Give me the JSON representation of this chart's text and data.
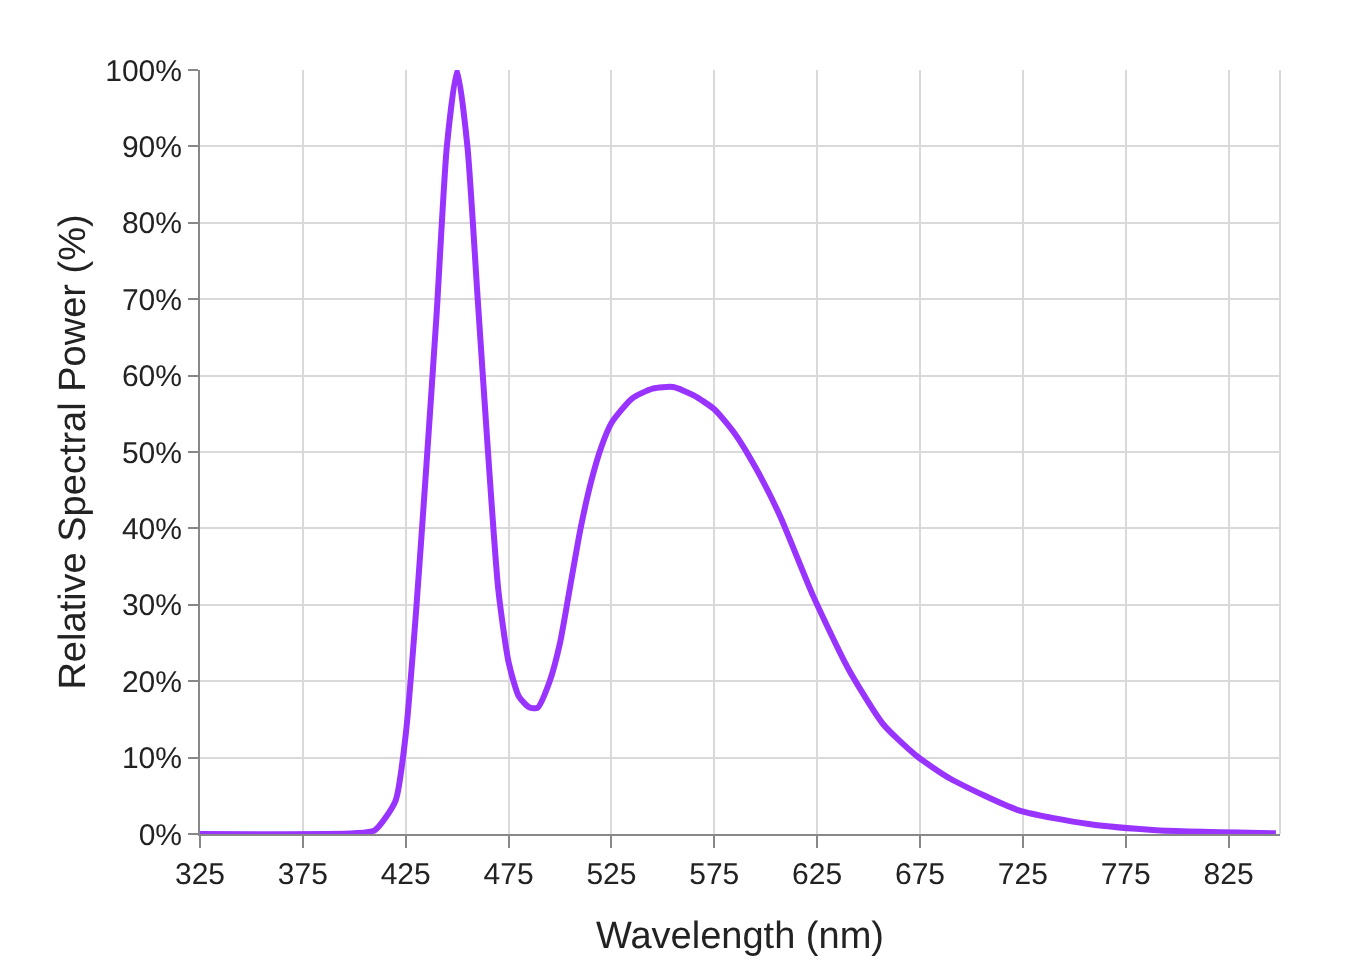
{
  "chart_data": {
    "type": "line",
    "xlabel": "Wavelength (nm)",
    "ylabel": "Relative Spectral Power (%)",
    "x": [
      325,
      400,
      410,
      420,
      425,
      430,
      435,
      440,
      445,
      450,
      455,
      460,
      465,
      470,
      475,
      480,
      485,
      489,
      495,
      500,
      505,
      510,
      515,
      520,
      525,
      535,
      545,
      555,
      565,
      575,
      585,
      595,
      607,
      623,
      640,
      657,
      673,
      690,
      723,
      757,
      790,
      848
    ],
    "series": [
      {
        "color": "#9933ff",
        "values": [
          0,
          0.1,
          0.5,
          4.3,
          13,
          29,
          48,
          68,
          90,
          100,
          90,
          70,
          50,
          32,
          22.5,
          18,
          16.6,
          16.5,
          20,
          25,
          32.5,
          40,
          46,
          50.6,
          53.8,
          57,
          58.3,
          58.5,
          57.4,
          55.6,
          52.4,
          48,
          41.6,
          31.2,
          21.7,
          14.4,
          10.3,
          7.2,
          3.1,
          1.3,
          0.5,
          0.1
        ]
      }
    ],
    "xlim": [
      325,
      850
    ],
    "xticks": [
      325,
      375,
      425,
      475,
      525,
      575,
      625,
      675,
      725,
      775,
      825
    ],
    "ylim": [
      0,
      100
    ],
    "yticks": [
      {
        "value": 0,
        "label": "0%"
      },
      {
        "value": 10,
        "label": "10%"
      },
      {
        "value": 20,
        "label": "20%"
      },
      {
        "value": 30,
        "label": "30%"
      },
      {
        "value": 40,
        "label": "40%"
      },
      {
        "value": 50,
        "label": "50%"
      },
      {
        "value": 60,
        "label": "60%"
      },
      {
        "value": 70,
        "label": "70%"
      },
      {
        "value": 80,
        "label": "80%"
      },
      {
        "value": 90,
        "label": "90%"
      },
      {
        "value": 100,
        "label": "100%"
      }
    ],
    "grid": true,
    "marker": "none",
    "line_style": "solid"
  }
}
